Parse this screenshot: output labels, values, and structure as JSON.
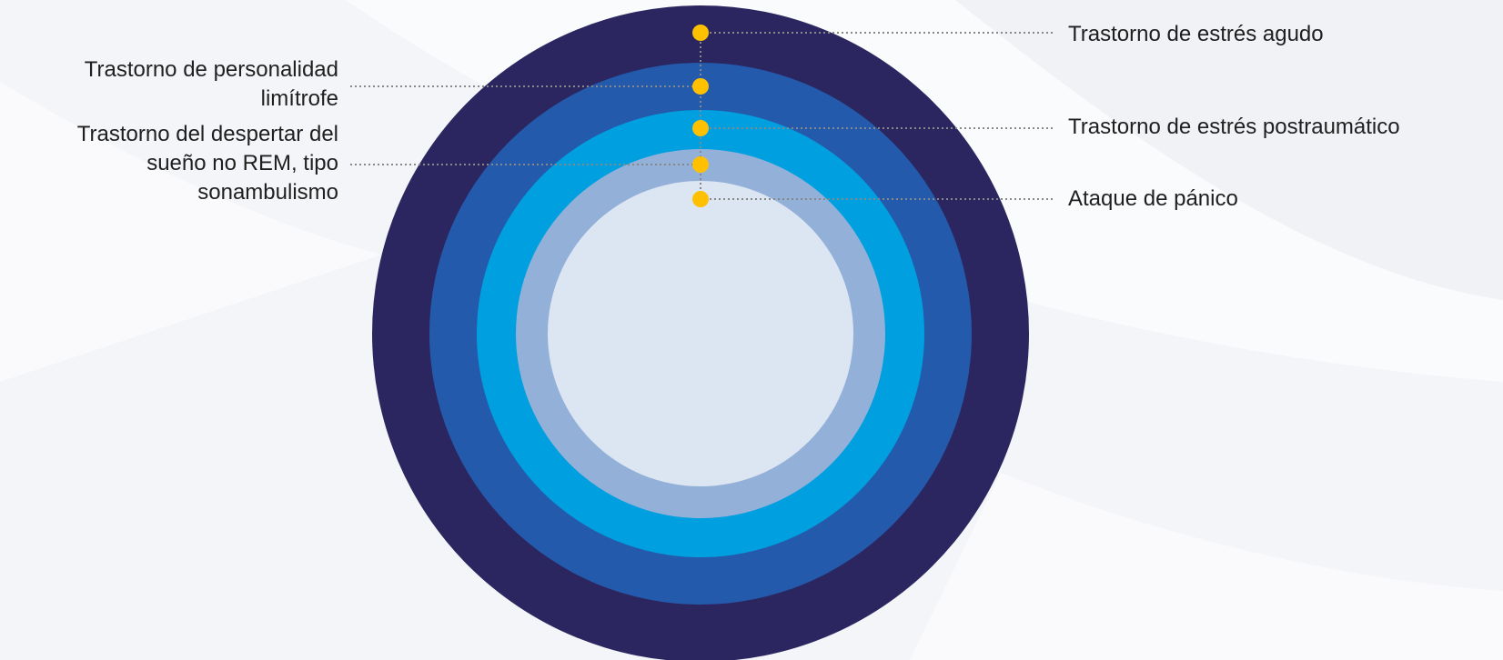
{
  "colors": {
    "background": "#f4f5f8",
    "ring_outer": "#2b2660",
    "ring_2": "#245aab",
    "ring_3": "#00a0e0",
    "ring_4": "#93b0d8",
    "core": "#dce5f2",
    "marker": "#ffc000",
    "leader_line": "#888888",
    "text": "#1f1f1f"
  },
  "rings": [
    {
      "name": "outer",
      "color": "#2b2660"
    },
    {
      "name": "ring-2",
      "color": "#245aab"
    },
    {
      "name": "ring-3",
      "color": "#00a0e0"
    },
    {
      "name": "ring-4",
      "color": "#93b0d8"
    },
    {
      "name": "core",
      "color": "#dce5f2"
    }
  ],
  "labels": {
    "acute_stress": "Trastorno de estrés agudo",
    "borderline_line1": "Trastorno de personalidad",
    "borderline_line2": "limítrofe",
    "ptsd": "Trastorno de estrés postraumático",
    "sleepwalking_line1": "Trastorno del despertar del",
    "sleepwalking_line2": "sueño no REM, tipo",
    "sleepwalking_line3": "sonambulismo",
    "panic_attack": "Ataque de pánico"
  }
}
